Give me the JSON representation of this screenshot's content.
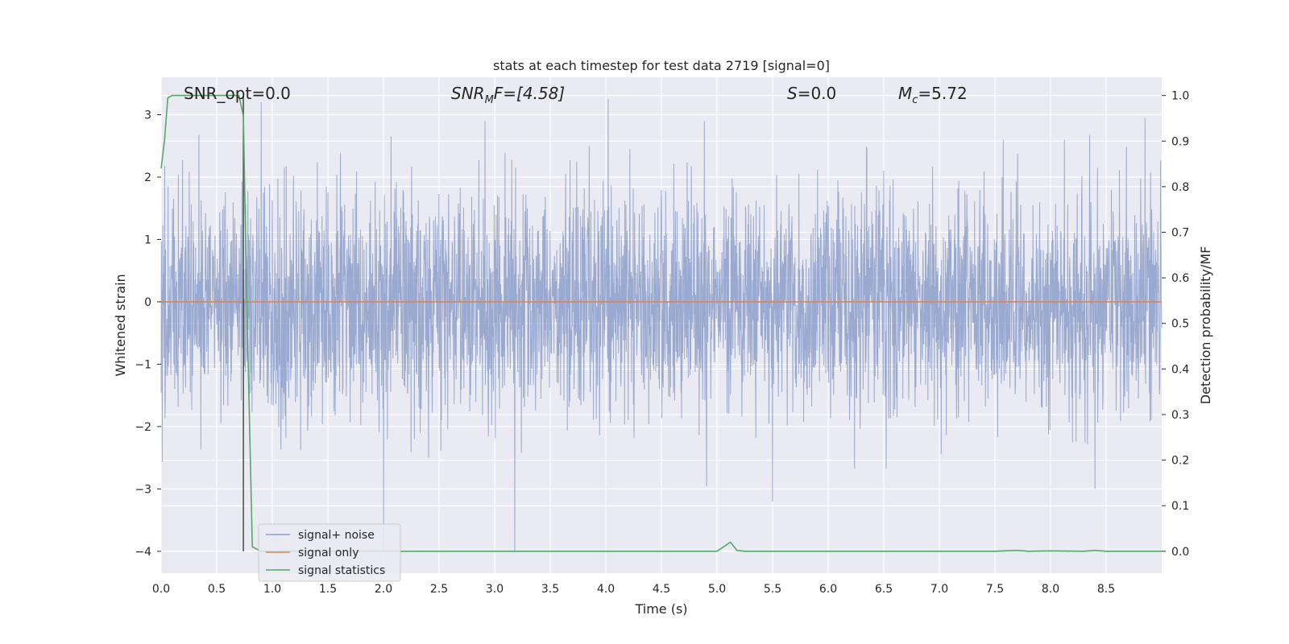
{
  "chart_data": {
    "type": "line",
    "title": "stats at each timestep for test data 2719 [signal=0]",
    "xlabel": "Time (s)",
    "ylabel": "Whitened strain",
    "y2label": "Detection probability/MF",
    "xlim": [
      0,
      9
    ],
    "ylim": [
      -4.35,
      3.6
    ],
    "y2lim": [
      -0.048,
      1.04
    ],
    "xticks": [
      "0.0",
      "0.5",
      "1.0",
      "1.5",
      "2.0",
      "2.5",
      "3.0",
      "3.5",
      "4.0",
      "4.5",
      "5.0",
      "5.5",
      "6.0",
      "6.5",
      "7.0",
      "7.5",
      "8.0",
      "8.5"
    ],
    "yticks": [
      "3",
      "2",
      "1",
      "0",
      "−1",
      "−2",
      "−3",
      "−4"
    ],
    "y2ticks": [
      "1.0",
      "0.9",
      "0.8",
      "0.7",
      "0.6",
      "0.5",
      "0.4",
      "0.3",
      "0.2",
      "0.1",
      "0.0"
    ],
    "annotations": {
      "snr_opt": "SNR_opt=0.0",
      "snr_mf_label": "SNR",
      "snr_mf_sub": "M",
      "snr_mf_value": "F=[4.58]",
      "s_label": "S",
      "s_value": "=0.0",
      "mc_label": "M",
      "mc_sub": "c",
      "mc_value": "=5.72"
    },
    "legend": {
      "placement": "lower-left",
      "entries": [
        "signal+ noise",
        "signal only",
        "signal statistics"
      ]
    },
    "series": [
      {
        "name": "signal+ noise",
        "color": "#8c9ec9",
        "kind": "noise",
        "amplitude_std": 0.9,
        "extremes": [
          {
            "x": 0.9,
            "y": 3.2
          },
          {
            "x": 2.0,
            "y": -4.0
          },
          {
            "x": 3.18,
            "y": -4.0
          },
          {
            "x": 4.02,
            "y": 3.25
          },
          {
            "x": 5.5,
            "y": -3.2
          },
          {
            "x": 8.4,
            "y": -3.0
          },
          {
            "x": 8.85,
            "y": 2.95
          }
        ]
      },
      {
        "name": "signal only",
        "color": "#dd8452",
        "x": [
          0,
          9
        ],
        "y": [
          0,
          0
        ]
      },
      {
        "name": "signal statistics",
        "color": "#55a868",
        "axis": "right",
        "x": [
          0.0,
          0.03,
          0.06,
          0.1,
          0.2,
          0.3,
          0.4,
          0.5,
          0.6,
          0.65,
          0.7,
          0.74,
          0.77,
          0.82,
          0.9,
          1.0,
          2.0,
          3.0,
          4.0,
          4.9,
          5.0,
          5.06,
          5.12,
          5.18,
          5.25,
          6.0,
          7.0,
          7.5,
          7.7,
          7.8,
          8.0,
          8.3,
          8.4,
          8.5,
          9.0
        ],
        "y": [
          0.84,
          0.9,
          0.995,
          1.0,
          1.0,
          1.0,
          1.0,
          1.0,
          1.0,
          1.0,
          1.0,
          0.955,
          0.55,
          0.01,
          0.0,
          0.0,
          0.0,
          0.0,
          0.0,
          0.0,
          0.0,
          0.01,
          0.02,
          0.002,
          0.0,
          0.0,
          0.0,
          0.0,
          0.002,
          0.0,
          0.001,
          0.0,
          0.002,
          0.0,
          0.0
        ]
      }
    ],
    "vline": {
      "x": 0.74,
      "color": "#4a4a4a"
    },
    "colors": {
      "plot_bg": "#eaeaf2",
      "grid": "#ffffff",
      "text": "#262626"
    },
    "grid": true
  }
}
